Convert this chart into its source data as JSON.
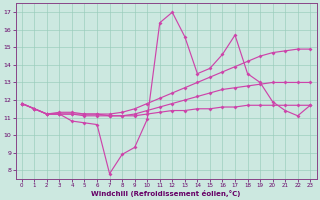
{
  "xlabel": "Windchill (Refroidissement éolien,°C)",
  "background_color": "#cce8e0",
  "grid_color": "#99ccbb",
  "line_color": "#cc44aa",
  "xlim": [
    -0.5,
    23.5
  ],
  "ylim": [
    7.5,
    17.5
  ],
  "xticks": [
    0,
    1,
    2,
    3,
    4,
    5,
    6,
    7,
    8,
    9,
    10,
    11,
    12,
    13,
    14,
    15,
    16,
    17,
    18,
    19,
    20,
    21,
    22,
    23
  ],
  "yticks": [
    8,
    9,
    10,
    11,
    12,
    13,
    14,
    15,
    16,
    17
  ],
  "line_volatile_x": [
    0,
    1,
    2,
    3,
    4,
    5,
    6,
    7,
    8,
    9,
    10,
    11,
    12,
    13,
    14,
    15,
    16,
    17,
    18,
    19,
    20,
    21,
    22,
    23
  ],
  "line_volatile_y": [
    11.8,
    11.5,
    11.2,
    11.2,
    10.8,
    10.7,
    10.6,
    7.8,
    8.9,
    9.3,
    10.9,
    16.4,
    17.0,
    15.6,
    13.5,
    13.8,
    14.6,
    15.7,
    13.5,
    13.0,
    11.9,
    11.4,
    11.1,
    11.7
  ],
  "line_rise2_x": [
    0,
    1,
    2,
    3,
    4,
    5,
    6,
    7,
    8,
    9,
    10,
    11,
    12,
    13,
    14,
    15,
    16,
    17,
    18,
    19,
    20,
    21,
    22,
    23
  ],
  "line_rise2_y": [
    11.8,
    11.5,
    11.2,
    11.3,
    11.3,
    11.2,
    11.2,
    11.2,
    11.3,
    11.5,
    11.8,
    12.1,
    12.4,
    12.7,
    13.0,
    13.3,
    13.6,
    13.9,
    14.2,
    14.5,
    14.7,
    14.8,
    14.9,
    14.9
  ],
  "line_rise1_x": [
    0,
    1,
    2,
    3,
    4,
    5,
    6,
    7,
    8,
    9,
    10,
    11,
    12,
    13,
    14,
    15,
    16,
    17,
    18,
    19,
    20,
    21,
    22,
    23
  ],
  "line_rise1_y": [
    11.8,
    11.5,
    11.2,
    11.2,
    11.2,
    11.2,
    11.2,
    11.1,
    11.1,
    11.2,
    11.4,
    11.6,
    11.8,
    12.0,
    12.2,
    12.4,
    12.6,
    12.7,
    12.8,
    12.9,
    13.0,
    13.0,
    13.0,
    13.0
  ],
  "line_flat_x": [
    0,
    1,
    2,
    3,
    4,
    5,
    6,
    7,
    8,
    9,
    10,
    11,
    12,
    13,
    14,
    15,
    16,
    17,
    18,
    19,
    20,
    21,
    22,
    23
  ],
  "line_flat_y": [
    11.8,
    11.5,
    11.2,
    11.2,
    11.2,
    11.1,
    11.1,
    11.1,
    11.1,
    11.1,
    11.2,
    11.3,
    11.4,
    11.4,
    11.5,
    11.5,
    11.6,
    11.6,
    11.7,
    11.7,
    11.7,
    11.7,
    11.7,
    11.7
  ]
}
